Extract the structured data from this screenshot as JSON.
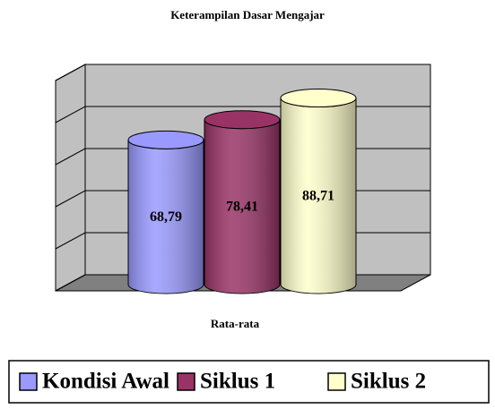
{
  "chart_data": {
    "type": "bar3d",
    "title": "Keterampilan Dasar Mengajar",
    "categories": [
      "Rata-rata"
    ],
    "series": [
      {
        "name": "Kondisi Awal",
        "color": "#9999ff",
        "values": [
          68.79
        ],
        "value_labels": [
          "68,79"
        ]
      },
      {
        "name": "Siklus 1",
        "color": "#993366",
        "values": [
          78.41
        ],
        "value_labels": [
          "78,41"
        ]
      },
      {
        "name": "Siklus 2",
        "color": "#ffffcc",
        "values": [
          88.71
        ],
        "value_labels": [
          "88,71"
        ]
      }
    ],
    "ylim": [
      0,
      100
    ],
    "yticks": [
      0,
      20,
      40,
      60,
      80,
      100
    ],
    "grid": true
  }
}
